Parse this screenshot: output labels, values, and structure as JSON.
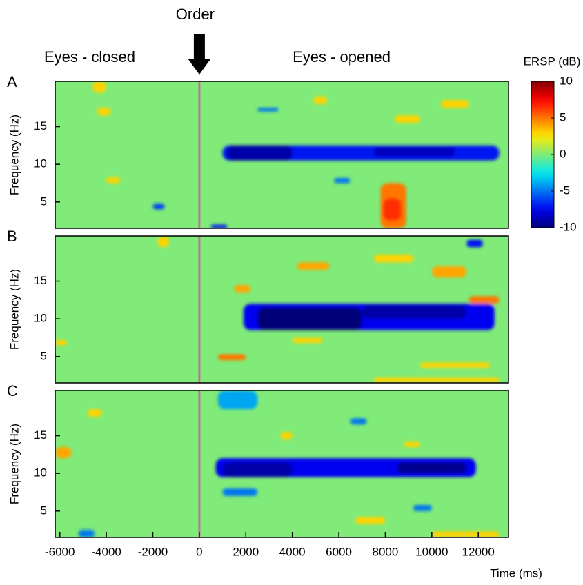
{
  "annotations": {
    "event": "Order",
    "event_time": 0,
    "left": "Eyes - closed",
    "right": "Eyes - opened"
  },
  "chart_data": [
    {
      "type": "heatmap",
      "label": "A",
      "ylabel": "Frequency (Hz)",
      "xlim": [
        -6200,
        13300
      ],
      "ylim": [
        1.5,
        21
      ],
      "yticks": [
        5,
        10,
        15
      ],
      "background": 0,
      "colorbar": {
        "title": "ERSP (dB)",
        "lim": [
          -10,
          10
        ],
        "ticks": [
          10,
          5,
          0,
          -5,
          -10
        ]
      },
      "blobs": [
        {
          "t": [
            1000,
            12900
          ],
          "f": [
            10.5,
            12.5
          ],
          "value": -7
        },
        {
          "t": [
            1200,
            4000
          ],
          "f": [
            10.5,
            12.5
          ],
          "value": -9
        },
        {
          "t": [
            7500,
            11000
          ],
          "f": [
            11,
            12.3
          ],
          "value": -8.5
        },
        {
          "t": [
            7800,
            8900
          ],
          "f": [
            1.5,
            7.5
          ],
          "value": 5
        },
        {
          "t": [
            7900,
            8700
          ],
          "f": [
            2.5,
            5.5
          ],
          "value": 6.5
        },
        {
          "t": [
            -4600,
            -4000
          ],
          "f": [
            19.5,
            21
          ],
          "value": 3
        },
        {
          "t": [
            -4400,
            -3800
          ],
          "f": [
            16.5,
            17.5
          ],
          "value": 3
        },
        {
          "t": [
            4900,
            5500
          ],
          "f": [
            18,
            19
          ],
          "value": 3
        },
        {
          "t": [
            10400,
            11600
          ],
          "f": [
            17.5,
            18.5
          ],
          "value": 3
        },
        {
          "t": [
            8400,
            9500
          ],
          "f": [
            15.5,
            16.5
          ],
          "value": 3
        },
        {
          "t": [
            -4000,
            -3400
          ],
          "f": [
            7.5,
            8.3
          ],
          "value": 3
        },
        {
          "t": [
            -2000,
            -1500
          ],
          "f": [
            4,
            4.8
          ],
          "value": -6
        },
        {
          "t": [
            500,
            1200
          ],
          "f": [
            1.5,
            2
          ],
          "value": -7
        },
        {
          "t": [
            2500,
            3400
          ],
          "f": [
            17,
            17.5
          ],
          "value": -5
        },
        {
          "t": [
            5800,
            6500
          ],
          "f": [
            7.5,
            8.2
          ],
          "value": -5
        }
      ]
    },
    {
      "type": "heatmap",
      "label": "B",
      "ylabel": "Frequency (Hz)",
      "xlim": [
        -6200,
        13300
      ],
      "ylim": [
        1.5,
        21
      ],
      "yticks": [
        5,
        10,
        15
      ],
      "background": 0,
      "blobs": [
        {
          "t": [
            1900,
            12700
          ],
          "f": [
            8.5,
            12
          ],
          "value": -7.5
        },
        {
          "t": [
            2500,
            7000
          ],
          "f": [
            8.5,
            11.5
          ],
          "value": -10
        },
        {
          "t": [
            7000,
            11500
          ],
          "f": [
            10,
            11.8
          ],
          "value": -9
        },
        {
          "t": [
            4200,
            5600
          ],
          "f": [
            16.5,
            17.5
          ],
          "value": 4
        },
        {
          "t": [
            7500,
            9200
          ],
          "f": [
            17.5,
            18.5
          ],
          "value": 3
        },
        {
          "t": [
            10000,
            11500
          ],
          "f": [
            15.5,
            17
          ],
          "value": 4
        },
        {
          "t": [
            11600,
            12900
          ],
          "f": [
            12,
            13
          ],
          "value": 5
        },
        {
          "t": [
            800,
            2000
          ],
          "f": [
            4.5,
            5.3
          ],
          "value": 5
        },
        {
          "t": [
            7500,
            12900
          ],
          "f": [
            1.5,
            2.2
          ],
          "value": 3
        },
        {
          "t": [
            1500,
            2200
          ],
          "f": [
            13.5,
            14.5
          ],
          "value": 4
        },
        {
          "t": [
            -1800,
            -1300
          ],
          "f": [
            19.5,
            21
          ],
          "value": 3
        },
        {
          "t": [
            4000,
            5300
          ],
          "f": [
            6.8,
            7.5
          ],
          "value": 3
        },
        {
          "t": [
            11500,
            12200
          ],
          "f": [
            19.5,
            20.5
          ],
          "value": -7
        },
        {
          "t": [
            -6200,
            -5700
          ],
          "f": [
            6.5,
            7.2
          ],
          "value": 3
        },
        {
          "t": [
            9500,
            12500
          ],
          "f": [
            3.5,
            4.2
          ],
          "value": 3
        }
      ]
    },
    {
      "type": "heatmap",
      "label": "C",
      "ylabel": "Frequency (Hz)",
      "xlabel": "Time (ms)",
      "xlim": [
        -6200,
        13300
      ],
      "ylim": [
        1.5,
        21
      ],
      "yticks": [
        5,
        10,
        15
      ],
      "xticks": [
        -6000,
        -4000,
        -2000,
        0,
        2000,
        4000,
        6000,
        8000,
        10000,
        12000
      ],
      "background": 0,
      "blobs": [
        {
          "t": [
            700,
            11900
          ],
          "f": [
            9.5,
            12
          ],
          "value": -7.5
        },
        {
          "t": [
            1000,
            4000
          ],
          "f": [
            9.5,
            11.5
          ],
          "value": -9
        },
        {
          "t": [
            8500,
            11500
          ],
          "f": [
            10,
            11.5
          ],
          "value": -9.5
        },
        {
          "t": [
            800,
            2500
          ],
          "f": [
            18.5,
            21
          ],
          "value": -4
        },
        {
          "t": [
            -6200,
            -5500
          ],
          "f": [
            12,
            13.5
          ],
          "value": 4
        },
        {
          "t": [
            3500,
            4000
          ],
          "f": [
            14.5,
            15.5
          ],
          "value": 3
        },
        {
          "t": [
            8800,
            9500
          ],
          "f": [
            13.5,
            14.2
          ],
          "value": 3
        },
        {
          "t": [
            6700,
            8000
          ],
          "f": [
            3.3,
            4.2
          ],
          "value": 3
        },
        {
          "t": [
            10000,
            12900
          ],
          "f": [
            1.5,
            2.3
          ],
          "value": 3
        },
        {
          "t": [
            -5200,
            -4500
          ],
          "f": [
            1.5,
            2.5
          ],
          "value": -5
        },
        {
          "t": [
            -4800,
            -4200
          ],
          "f": [
            17.5,
            18.5
          ],
          "value": 3
        },
        {
          "t": [
            1000,
            2500
          ],
          "f": [
            7,
            8
          ],
          "value": -5
        },
        {
          "t": [
            6500,
            7200
          ],
          "f": [
            16.5,
            17.3
          ],
          "value": -5
        },
        {
          "t": [
            9200,
            10000
          ],
          "f": [
            5,
            5.8
          ],
          "value": -5
        }
      ]
    }
  ]
}
